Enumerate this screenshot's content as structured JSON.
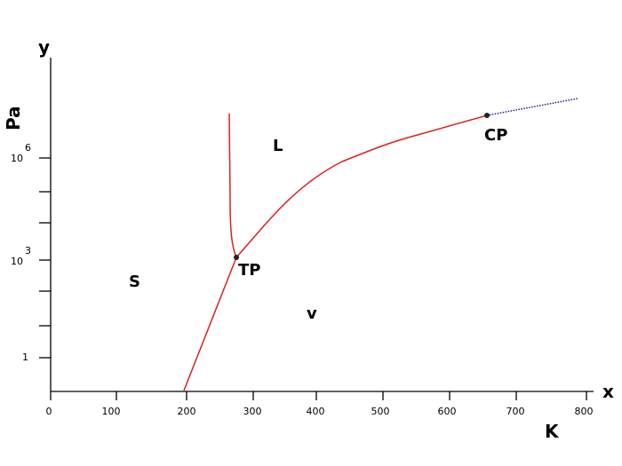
{
  "axes": {
    "y_label": "y",
    "y_unit": "Pa",
    "x_label": "x",
    "x_unit": "K",
    "x_ticks": [
      "0",
      "100",
      "200",
      "300",
      "400",
      "500",
      "600",
      "700",
      "800"
    ],
    "y_ticks": [
      {
        "base": "1"
      },
      {
        "base": "10",
        "exp": "3"
      },
      {
        "base": "10",
        "exp": "6"
      }
    ]
  },
  "regions": {
    "liquid": "L",
    "solid": "S",
    "vapor": "v"
  },
  "points": {
    "triple": "TP",
    "critical": "CP"
  }
}
